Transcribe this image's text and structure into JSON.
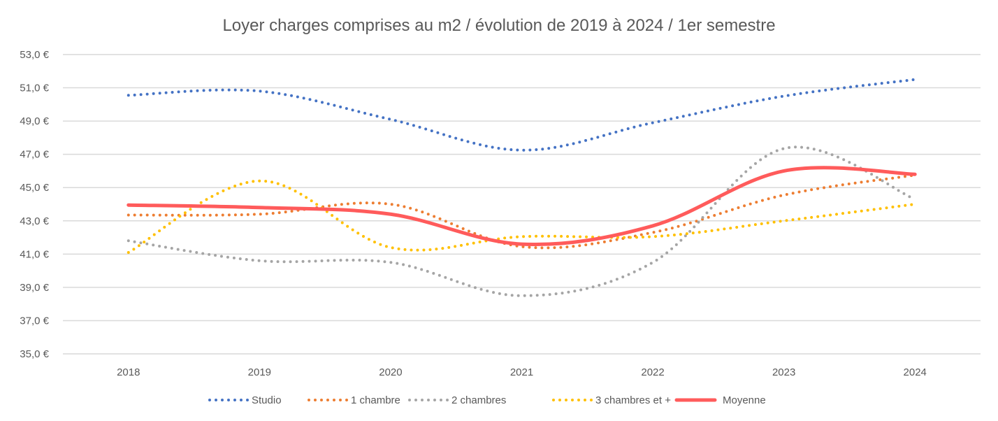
{
  "chart_data": {
    "type": "line",
    "title": "Loyer charges comprises au m2 / évolution de 2019 à 2024 / 1er semestre",
    "xlabel": "",
    "ylabel": "",
    "categories": [
      "2018",
      "2019",
      "2020",
      "2021",
      "2022",
      "2023",
      "2024"
    ],
    "ylim": [
      35,
      53
    ],
    "yticks": [
      35,
      37,
      39,
      41,
      43,
      45,
      47,
      49,
      51,
      53
    ],
    "ytick_labels": [
      "35,0 €",
      "37,0 €",
      "39,0 €",
      "41,0 €",
      "43,0 €",
      "45,0 €",
      "47,0 €",
      "49,0 €",
      "51,0 €",
      "53,0 €"
    ],
    "grid": true,
    "smooth": true,
    "legend_position": "bottom",
    "series": [
      {
        "name": "Studio",
        "color": "#4472C4",
        "style": "dotted",
        "values": [
          50.55,
          50.8,
          49.1,
          47.25,
          48.9,
          50.5,
          51.5
        ]
      },
      {
        "name": "1 chambre",
        "color": "#ED7D31",
        "style": "dotted",
        "values": [
          43.35,
          43.4,
          44.0,
          41.45,
          42.3,
          44.55,
          45.75
        ]
      },
      {
        "name": "2 chambres",
        "color": "#A5A5A5",
        "style": "dotted",
        "values": [
          41.8,
          40.6,
          40.5,
          38.5,
          40.5,
          47.35,
          44.3
        ]
      },
      {
        "name": "3 chambres et +",
        "color": "#FFC000",
        "style": "dotted",
        "values": [
          41.1,
          45.4,
          41.4,
          42.05,
          42.05,
          43.0,
          44.0
        ]
      },
      {
        "name": "Moyenne",
        "color": "#FF5B5B",
        "style": "solid",
        "values": [
          43.95,
          43.8,
          43.4,
          41.6,
          42.7,
          46.0,
          45.8
        ]
      }
    ]
  }
}
